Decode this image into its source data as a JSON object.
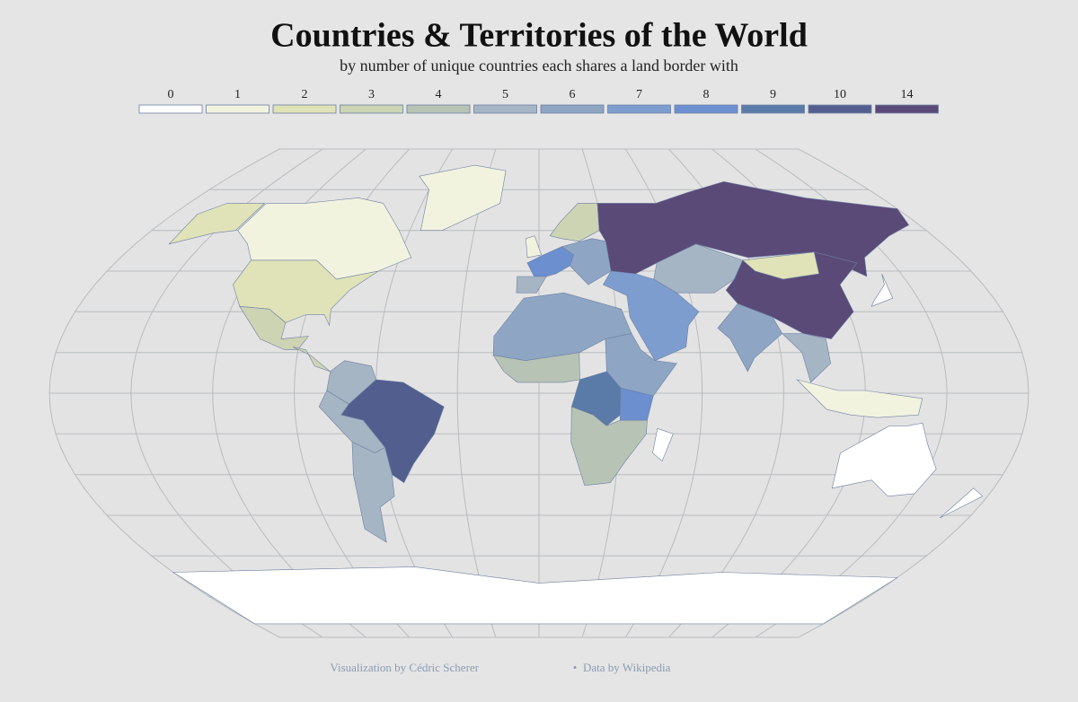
{
  "header": {
    "title": "Countries & Territories of the World",
    "subtitle": "by number of unique countries each shares a land border with"
  },
  "legend": {
    "items": [
      {
        "value": 0,
        "color": "#ffffff"
      },
      {
        "value": 1,
        "color": "#f2f3df"
      },
      {
        "value": 2,
        "color": "#e0e3b8"
      },
      {
        "value": 3,
        "color": "#cdd4b4"
      },
      {
        "value": 4,
        "color": "#b7c4b5"
      },
      {
        "value": 5,
        "color": "#a6b5c4"
      },
      {
        "value": 6,
        "color": "#8ea6c4"
      },
      {
        "value": 7,
        "color": "#7e9dcf"
      },
      {
        "value": 8,
        "color": "#6b8fcf"
      },
      {
        "value": 9,
        "color": "#5a7aa8"
      },
      {
        "value": 10,
        "color": "#525f8e"
      },
      {
        "value": 14,
        "color": "#5a4a77"
      }
    ]
  },
  "regions": {
    "values": [
      1,
      2,
      2,
      1,
      3,
      3,
      10,
      5,
      5,
      5,
      6,
      4,
      6,
      9,
      8,
      4,
      0,
      8,
      5,
      6,
      3,
      1,
      14,
      5,
      7,
      2,
      14,
      6,
      5,
      1,
      0,
      0,
      0,
      0
    ]
  },
  "footer": {
    "credit": "Visualization by Cédric Scherer",
    "source": "Data by Wikipedia"
  }
}
